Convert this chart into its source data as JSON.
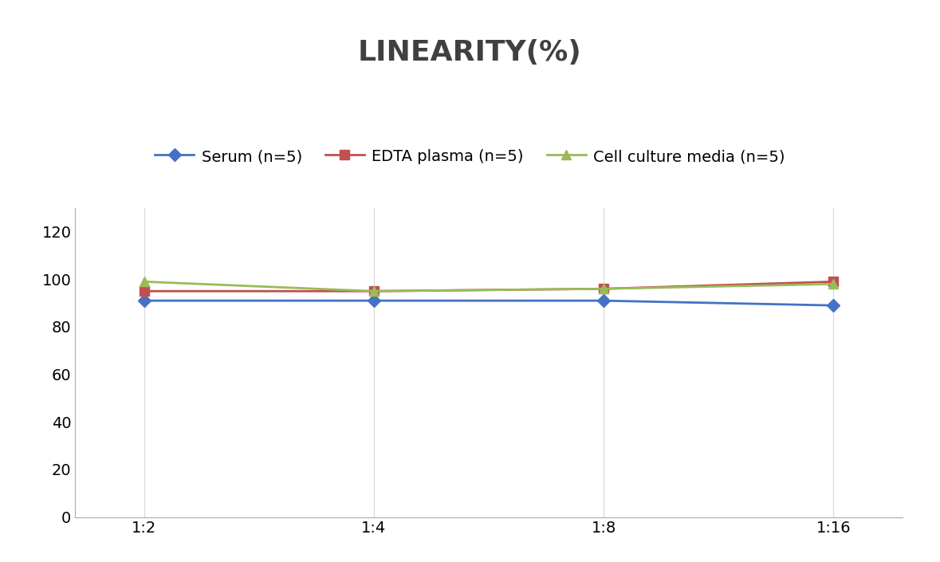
{
  "title": "LINEARITY(%)",
  "title_fontsize": 26,
  "title_fontweight": "bold",
  "title_color": "#404040",
  "x_labels": [
    "1:2",
    "1:4",
    "1:8",
    "1:16"
  ],
  "x_positions": [
    0,
    1,
    2,
    3
  ],
  "serum": {
    "label": "Serum (n=5)",
    "color": "#4472C4",
    "marker": "D",
    "values": [
      91,
      91,
      91,
      89
    ]
  },
  "edta": {
    "label": "EDTA plasma (n=5)",
    "color": "#C0504D",
    "marker": "s",
    "values": [
      95,
      95,
      96,
      99
    ]
  },
  "cell": {
    "label": "Cell culture media (n=5)",
    "color": "#9BBB59",
    "marker": "^",
    "values": [
      99,
      95,
      96,
      98
    ]
  },
  "ylim": [
    0,
    130
  ],
  "yticks": [
    0,
    20,
    40,
    60,
    80,
    100,
    120
  ],
  "background_color": "#FFFFFF",
  "grid_color": "#DDDDDD",
  "legend_fontsize": 14,
  "tick_fontsize": 14
}
